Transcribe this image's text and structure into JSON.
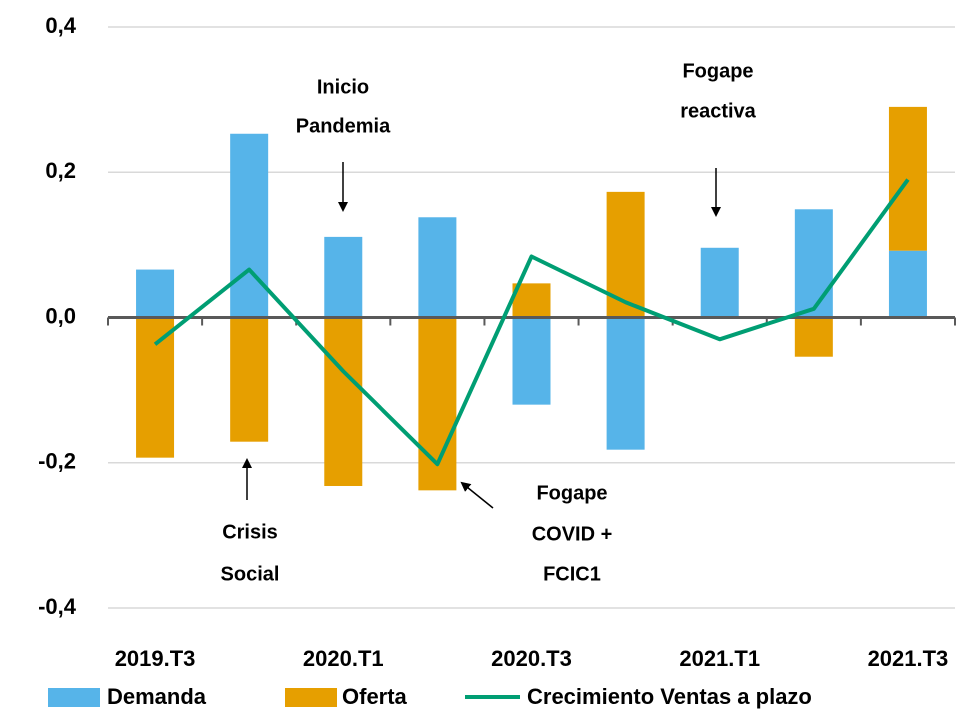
{
  "chart_data": {
    "type": "bar",
    "stacked": true,
    "categories": [
      "2019.T3",
      null,
      "2020.T1",
      null,
      "2020.T3",
      null,
      "2021.T1",
      null,
      "2021.T3"
    ],
    "series": [
      {
        "name": "Demanda",
        "type": "bar",
        "color": "#56b4e9",
        "values": [
          0.066,
          0.253,
          0.111,
          0.138,
          -0.12,
          -0.182,
          0.096,
          0.149,
          0.092
        ]
      },
      {
        "name": "Oferta",
        "type": "bar",
        "color": "#e69f00",
        "values": [
          -0.193,
          -0.171,
          -0.232,
          -0.238,
          0.047,
          0.173,
          0,
          -0.054,
          0.198
        ]
      },
      {
        "name": "Crecimiento Ventas a plazo",
        "type": "line",
        "color": "#009e73",
        "values": [
          -0.037,
          0.066,
          -0.074,
          -0.202,
          0.084,
          0.021,
          -0.03,
          0.012,
          0.19
        ]
      }
    ],
    "ylim": [
      -0.4,
      0.4
    ],
    "yticks": [
      {
        "value": -0.4,
        "label": "-0,4"
      },
      {
        "value": -0.2,
        "label": "-0,2"
      },
      {
        "value": 0,
        "label": "0,0"
      },
      {
        "value": 0.2,
        "label": "0,2"
      },
      {
        "value": 0.4,
        "label": "0,4"
      }
    ],
    "grid": true,
    "legend": "bottom",
    "annotations": [
      {
        "lines": [
          "Inicio",
          "Pandemia"
        ]
      },
      {
        "lines": [
          "Crisis",
          "Social"
        ]
      },
      {
        "lines": [
          "Fogape",
          "COVID +",
          "FCIC1"
        ]
      },
      {
        "lines": [
          "Fogape",
          "reactiva"
        ]
      }
    ]
  }
}
